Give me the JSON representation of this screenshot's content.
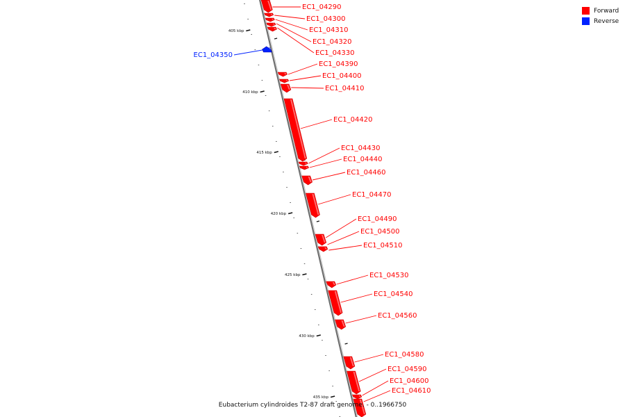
{
  "caption": "Eubacterium cylindroides T2-87 draft genome. - 0..1966750",
  "legend": [
    {
      "label": "Forward",
      "color": "#ff0000"
    },
    {
      "label": "Reverse",
      "color": "#0022ff"
    }
  ],
  "colors": {
    "forward": "#ff0000",
    "reverse": "#0022ff",
    "backbone": "#888888"
  },
  "ticks": [
    "405 kbp",
    "410 kbp",
    "415 kbp",
    "420 kbp",
    "425 kbp",
    "430 kbp",
    "435 kbp"
  ],
  "genes": [
    {
      "label": "EC1_04290",
      "strand": "forward"
    },
    {
      "label": "EC1_04300",
      "strand": "forward"
    },
    {
      "label": "EC1_04310",
      "strand": "forward"
    },
    {
      "label": "EC1_04320",
      "strand": "forward"
    },
    {
      "label": "EC1_04330",
      "strand": "forward"
    },
    {
      "label": "EC1_04350",
      "strand": "reverse"
    },
    {
      "label": "EC1_04390",
      "strand": "forward"
    },
    {
      "label": "EC1_04400",
      "strand": "forward"
    },
    {
      "label": "EC1_04410",
      "strand": "forward"
    },
    {
      "label": "EC1_04420",
      "strand": "forward"
    },
    {
      "label": "EC1_04430",
      "strand": "forward"
    },
    {
      "label": "EC1_04440",
      "strand": "forward"
    },
    {
      "label": "EC1_04460",
      "strand": "forward"
    },
    {
      "label": "EC1_04470",
      "strand": "forward"
    },
    {
      "label": "EC1_04490",
      "strand": "forward"
    },
    {
      "label": "EC1_04500",
      "strand": "forward"
    },
    {
      "label": "EC1_04510",
      "strand": "forward"
    },
    {
      "label": "EC1_04530",
      "strand": "forward"
    },
    {
      "label": "EC1_04540",
      "strand": "forward"
    },
    {
      "label": "EC1_04560",
      "strand": "forward"
    },
    {
      "label": "EC1_04580",
      "strand": "forward"
    },
    {
      "label": "EC1_04590",
      "strand": "forward"
    },
    {
      "label": "EC1_04600",
      "strand": "forward"
    },
    {
      "label": "EC1_04610",
      "strand": "forward"
    }
  ]
}
